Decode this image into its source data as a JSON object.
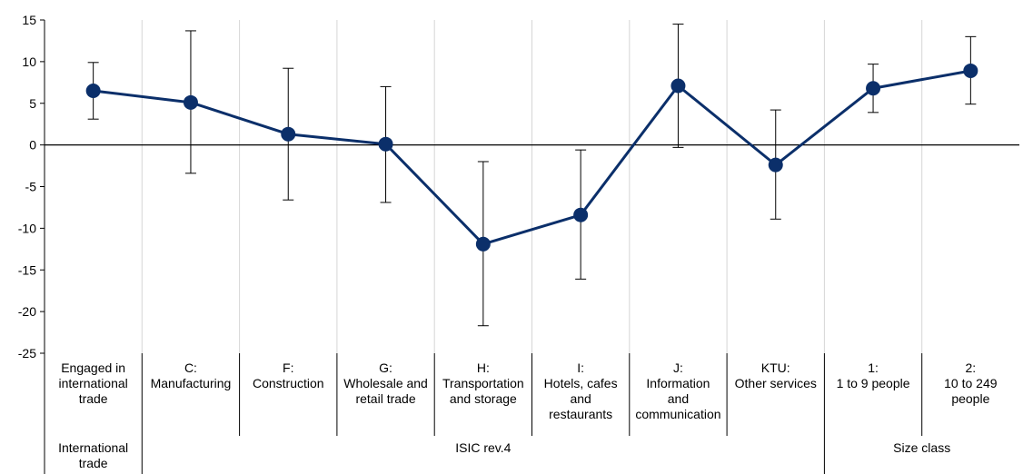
{
  "chart_data": {
    "type": "line",
    "title": "",
    "xlabel": "",
    "ylabel": "",
    "ylim": [
      -25,
      15
    ],
    "yticks": [
      15,
      10,
      5,
      0,
      -5,
      -10,
      -15,
      -20,
      -25
    ],
    "grid": "vertical",
    "categories": [
      [
        "Engaged in",
        "international",
        "trade"
      ],
      [
        "C:",
        "Manufacturing"
      ],
      [
        "F:",
        "Construction"
      ],
      [
        "G:",
        "Wholesale and",
        "retail trade"
      ],
      [
        "H:",
        "Transportation",
        "and storage"
      ],
      [
        "I:",
        "Hotels, cafes",
        "and",
        "restaurants"
      ],
      [
        "J:",
        "Information",
        "and",
        "communication"
      ],
      [
        "KTU:",
        "Other services"
      ],
      [
        "1:",
        "1 to 9 people"
      ],
      [
        "2:",
        "10 to 249",
        "people"
      ]
    ],
    "groups": [
      {
        "label": [
          "International",
          "trade"
        ],
        "start": 0,
        "end": 0
      },
      {
        "label": [
          "ISIC rev.4"
        ],
        "start": 1,
        "end": 7
      },
      {
        "label": [
          "Size class"
        ],
        "start": 8,
        "end": 9
      }
    ],
    "series": [
      {
        "values": [
          6.5,
          5.1,
          1.3,
          0.1,
          -11.9,
          -8.4,
          7.1,
          -2.4,
          6.8,
          8.9
        ],
        "lower": [
          3.1,
          -3.4,
          -6.6,
          -6.9,
          -21.7,
          -16.1,
          -0.3,
          -8.9,
          3.9,
          4.9
        ],
        "upper": [
          9.9,
          13.7,
          9.2,
          7.0,
          -2.0,
          -0.6,
          14.5,
          4.2,
          9.7,
          13.0
        ],
        "color": "#0b2f6a"
      }
    ],
    "error_bar_color": "#000000"
  }
}
